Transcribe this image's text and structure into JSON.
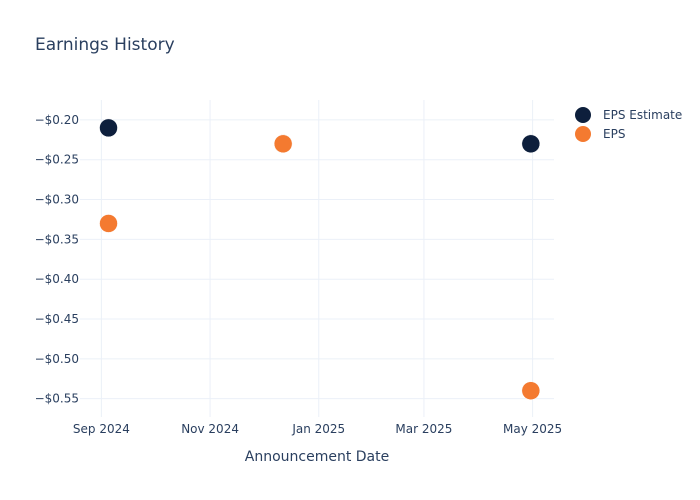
{
  "chart_data": {
    "type": "scatter",
    "title": "Earnings History",
    "xlabel": "Announcement Date",
    "ylabel": "",
    "x_ticks": [
      "Sep 2024",
      "Nov 2024",
      "Jan 2025",
      "Mar 2025",
      "May 2025"
    ],
    "x_tick_dates": [
      "2024-09-01",
      "2024-11-01",
      "2025-01-01",
      "2025-03-01",
      "2025-05-01"
    ],
    "xlim": [
      "2024-08-20",
      "2025-05-13"
    ],
    "y_ticks": [
      "−$0.20",
      "−$0.25",
      "−$0.30",
      "−$0.35",
      "−$0.40",
      "−$0.45",
      "−$0.50",
      "−$0.55"
    ],
    "y_tick_values": [
      -0.2,
      -0.25,
      -0.3,
      -0.35,
      -0.4,
      -0.45,
      -0.5,
      -0.55
    ],
    "ylim": [
      -0.573,
      -0.175
    ],
    "grid": true,
    "legend_position": "top-right",
    "series": [
      {
        "name": "EPS Estimate",
        "color": "#0d1f3c",
        "points": [
          {
            "x": "2024-09-05",
            "y": -0.21
          },
          {
            "x": "2024-12-12",
            "y": -0.23
          },
          {
            "x": "2025-04-30",
            "y": -0.23
          }
        ]
      },
      {
        "name": "EPS",
        "color": "#f47a30",
        "points": [
          {
            "x": "2024-09-05",
            "y": -0.33
          },
          {
            "x": "2024-12-12",
            "y": -0.23
          },
          {
            "x": "2025-04-30",
            "y": -0.54
          }
        ]
      }
    ]
  }
}
